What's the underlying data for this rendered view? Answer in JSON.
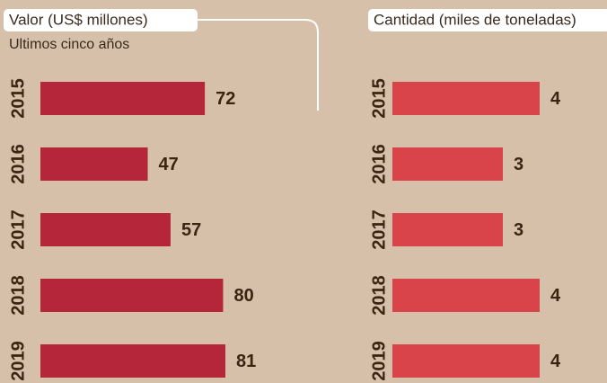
{
  "chart_data": [
    {
      "type": "bar",
      "orientation": "horizontal",
      "title": "Valor (US$ millones)",
      "subtitle": "Ultimos cinco años",
      "categories": [
        "2015",
        "2016",
        "2017",
        "2018",
        "2019"
      ],
      "values": [
        72,
        47,
        57,
        80,
        81
      ],
      "color": "#b5263a"
    },
    {
      "type": "bar",
      "orientation": "horizontal",
      "title": "Cantidad (miles de toneladas)",
      "categories": [
        "2015",
        "2016",
        "2017",
        "2018",
        "2019"
      ],
      "values": [
        4,
        3,
        3,
        4,
        4
      ],
      "color": "#d9434a"
    }
  ]
}
